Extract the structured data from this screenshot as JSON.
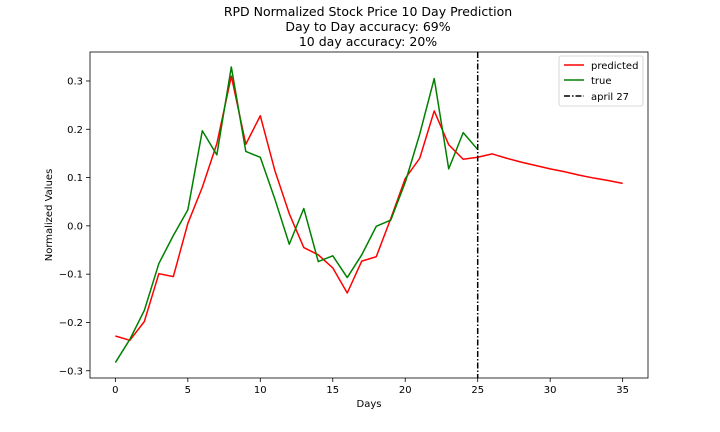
{
  "chart_data": {
    "type": "line",
    "title": [
      "RPD Normalized Stock Price 10 Day Prediction",
      "Day to Day accuracy: 69%",
      "10 day accuracy: 20%"
    ],
    "xlabel": "Days",
    "ylabel": "Normalized Values",
    "xlim": [
      -1.75,
      36.75
    ],
    "ylim": [
      -0.315,
      0.36
    ],
    "xticks": [
      0,
      5,
      10,
      15,
      20,
      25,
      30,
      35
    ],
    "yticks": [
      -0.3,
      -0.2,
      -0.1,
      0.0,
      0.1,
      0.2,
      0.3
    ],
    "ytick_labels": [
      "−0.3",
      "−0.2",
      "−0.1",
      "0.0",
      "0.1",
      "0.2",
      "0.3"
    ],
    "grid": false,
    "legend_position": "top-right",
    "series": [
      {
        "name": "predicted",
        "color": "#ff0000",
        "x": [
          0,
          1,
          2,
          3,
          4,
          5,
          6,
          7,
          8,
          9,
          10,
          11,
          12,
          13,
          14,
          15,
          16,
          17,
          18,
          19,
          20,
          21,
          22,
          23,
          24,
          25,
          26,
          27,
          28,
          29,
          30,
          31,
          32,
          33,
          34,
          35
        ],
        "y": [
          -0.228,
          -0.237,
          -0.198,
          -0.099,
          -0.105,
          0.005,
          0.08,
          0.17,
          0.31,
          0.169,
          0.228,
          0.115,
          0.025,
          -0.045,
          -0.06,
          -0.087,
          -0.139,
          -0.073,
          -0.064,
          0.015,
          0.098,
          0.14,
          0.238,
          0.168,
          0.138,
          0.142,
          0.149,
          0.14,
          0.132,
          0.125,
          0.118,
          0.112,
          0.105,
          0.099,
          0.094,
          0.088
        ]
      },
      {
        "name": "true",
        "color": "#008000",
        "x": [
          0,
          1,
          2,
          3,
          4,
          5,
          6,
          7,
          8,
          9,
          10,
          11,
          12,
          13,
          14,
          15,
          16,
          17,
          18,
          19,
          20,
          21,
          22,
          23,
          24,
          25
        ],
        "y": [
          -0.283,
          -0.235,
          -0.175,
          -0.078,
          -0.02,
          0.033,
          0.197,
          0.147,
          0.329,
          0.154,
          0.142,
          0.056,
          -0.038,
          0.036,
          -0.074,
          -0.062,
          -0.107,
          -0.06,
          -0.001,
          0.012,
          0.09,
          0.19,
          0.305,
          0.118,
          0.193,
          0.158
        ]
      }
    ],
    "vline": {
      "name": "april 27",
      "x": 25,
      "color": "#000000",
      "style": "dashdot"
    }
  }
}
